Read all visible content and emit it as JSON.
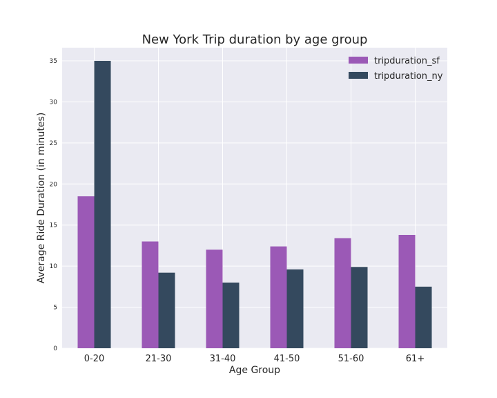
{
  "chart_data": {
    "type": "bar",
    "title": "New York Trip duration by age group",
    "xlabel": "Age Group",
    "ylabel": "Average Ride Duration (in minutes)",
    "categories": [
      "0-20",
      "21-30",
      "31-40",
      "41-50",
      "51-60",
      "61+"
    ],
    "series": [
      {
        "name": "tripduration_sf",
        "color": "#9b59b6",
        "values": [
          18.5,
          13.0,
          12.0,
          12.4,
          13.4,
          13.8
        ]
      },
      {
        "name": "tripduration_ny",
        "color": "#34495e",
        "values": [
          35.0,
          9.2,
          8.0,
          9.6,
          9.9,
          7.5
        ]
      }
    ],
    "ylim": [
      0,
      36.6
    ],
    "yticks": [
      "0",
      "5",
      "10",
      "15",
      "20",
      "25",
      "30",
      "35"
    ],
    "grid": true,
    "legend_position": "top-right",
    "background": "#eaeaf2"
  }
}
